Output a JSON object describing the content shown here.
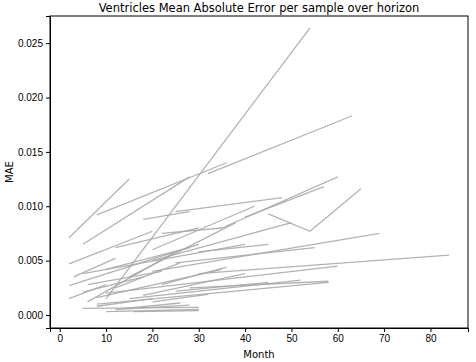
{
  "chart_data": {
    "type": "line",
    "title": "Ventricles Mean Absolute Error per sample over horizon",
    "x_label": "Month",
    "y_label": "MAE",
    "color": "#aaaaaa",
    "xlim": [
      -2.1,
      88.1
    ],
    "ylim": [
      -0.0012,
      0.0275
    ],
    "xticks": [
      0,
      10,
      20,
      30,
      40,
      50,
      60,
      70,
      80
    ],
    "yticks": [
      {
        "value": 0,
        "label": "0.000"
      },
      {
        "value": 0.005,
        "label": "0.005"
      },
      {
        "value": 0.01,
        "label": "0.010"
      },
      {
        "value": 0.015,
        "label": "0.015"
      },
      {
        "value": 0.02,
        "label": "0.020"
      },
      {
        "value": 0.025,
        "label": "0.025"
      }
    ],
    "grid": false,
    "series": [
      {
        "x": [
          10,
          54
        ],
        "values": [
          0.0015,
          0.0264
        ]
      },
      {
        "x": [
          2,
          15
        ],
        "values": [
          0.0071,
          0.0125
        ]
      },
      {
        "x": [
          5,
          28
        ],
        "values": [
          0.0065,
          0.0127
        ]
      },
      {
        "x": [
          8,
          36
        ],
        "values": [
          0.0092,
          0.014
        ]
      },
      {
        "x": [
          32,
          63
        ],
        "values": [
          0.013,
          0.0183
        ]
      },
      {
        "x": [
          25,
          48
        ],
        "values": [
          0.0095,
          0.0108
        ]
      },
      {
        "x": [
          35,
          60
        ],
        "values": [
          0.008,
          0.0127
        ]
      },
      {
        "x": [
          40,
          57
        ],
        "values": [
          0.009,
          0.0118
        ]
      },
      {
        "x": [
          45,
          54,
          65
        ],
        "values": [
          0.0093,
          0.0077,
          0.0116
        ]
      },
      {
        "x": [
          2,
          20
        ],
        "values": [
          0.0047,
          0.0077
        ]
      },
      {
        "x": [
          2,
          30
        ],
        "values": [
          0.0027,
          0.0065
        ]
      },
      {
        "x": [
          5,
          40
        ],
        "values": [
          0.0038,
          0.0065
        ]
      },
      {
        "x": [
          20,
          69
        ],
        "values": [
          0.004,
          0.0075
        ]
      },
      {
        "x": [
          30,
          84
        ],
        "values": [
          0.0038,
          0.0055
        ]
      },
      {
        "x": [
          10,
          60
        ],
        "values": [
          0.002,
          0.0045
        ]
      },
      {
        "x": [
          8,
          58
        ],
        "values": [
          0.001,
          0.003
        ]
      },
      {
        "x": [
          15,
          52
        ],
        "values": [
          0.0015,
          0.0032
        ]
      },
      {
        "x": [
          5,
          30
        ],
        "values": [
          0.0006,
          0.0007
        ]
      },
      {
        "x": [
          10,
          30
        ],
        "values": [
          0.0003,
          0.0005
        ]
      },
      {
        "x": [
          12,
          28
        ],
        "values": [
          0.0005,
          0.0009
        ]
      },
      {
        "x": [
          6,
          25
        ],
        "values": [
          0.0012,
          0.0058
        ]
      },
      {
        "x": [
          15,
          38
        ],
        "values": [
          0.0035,
          0.0085
        ]
      },
      {
        "x": [
          20,
          50
        ],
        "values": [
          0.005,
          0.0085
        ]
      },
      {
        "x": [
          20,
          42
        ],
        "values": [
          0.006,
          0.01
        ]
      },
      {
        "x": [
          22,
          35
        ],
        "values": [
          0.0075,
          0.008
        ]
      },
      {
        "x": [
          3,
          12
        ],
        "values": [
          0.0035,
          0.0052
        ]
      },
      {
        "x": [
          5,
          18
        ],
        "values": [
          0.0021,
          0.0035
        ]
      },
      {
        "x": [
          12,
          26
        ],
        "values": [
          0.0025,
          0.0048
        ]
      },
      {
        "x": [
          18,
          40
        ],
        "values": [
          0.0018,
          0.0038
        ]
      },
      {
        "x": [
          25,
          45
        ],
        "values": [
          0.0022,
          0.003
        ]
      },
      {
        "x": [
          8,
          20
        ],
        "values": [
          0.0008,
          0.0015
        ]
      },
      {
        "x": [
          14,
          26
        ],
        "values": [
          0.0006,
          0.0011
        ]
      },
      {
        "x": [
          20,
          32
        ],
        "values": [
          0.0012,
          0.0019
        ]
      },
      {
        "x": [
          10,
          28
        ],
        "values": [
          0.0042,
          0.0062
        ]
      },
      {
        "x": [
          6,
          22
        ],
        "values": [
          0.0028,
          0.004
        ]
      },
      {
        "x": [
          30,
          45
        ],
        "values": [
          0.0058,
          0.0065
        ]
      },
      {
        "x": [
          18,
          28
        ],
        "values": [
          0.0088,
          0.0095
        ]
      },
      {
        "x": [
          12,
          30
        ],
        "values": [
          0.0062,
          0.008
        ]
      },
      {
        "x": [
          25,
          55
        ],
        "values": [
          0.0048,
          0.0062
        ]
      },
      {
        "x": [
          28,
          58
        ],
        "values": [
          0.0025,
          0.0031
        ]
      },
      {
        "x": [
          8,
          35
        ],
        "values": [
          0.0016,
          0.0042
        ]
      },
      {
        "x": [
          22,
          36
        ],
        "values": [
          0.0028,
          0.0044
        ]
      },
      {
        "x": [
          16,
          30
        ],
        "values": [
          0.0003,
          0.0004
        ]
      },
      {
        "x": [
          2,
          10
        ],
        "values": [
          0.0015,
          0.0028
        ]
      }
    ]
  }
}
